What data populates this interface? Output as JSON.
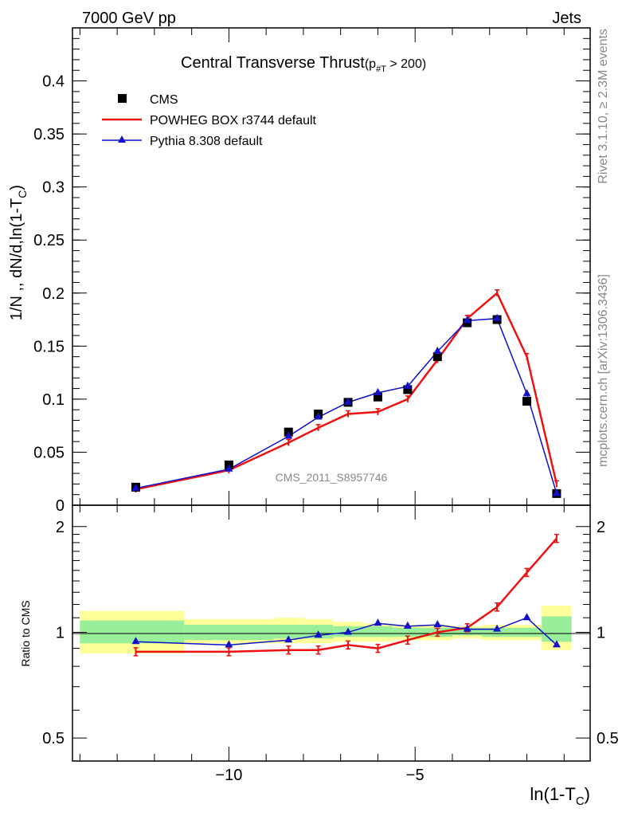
{
  "header": {
    "left": "7000 GeV pp",
    "right": "Jets"
  },
  "side_labels": {
    "top": "Rivet 3.1.10, ≥ 2.3M events",
    "bottom": "mcplots.cern.ch [arXiv:1306.3436]"
  },
  "watermark": "CMS_2011_S8957746",
  "chart_data": [
    {
      "type": "line",
      "title_main": "Central Transverse Thrust",
      "title_sub": "(p",
      "title_sub2": "#T",
      "title_sub3": " > 200)",
      "ylabel": "1/N ,, dN/d,ln(1-T",
      "ylabel_sub": "C",
      "ylabel_end": ")",
      "xlim": [
        -14.2,
        -0.3
      ],
      "ylim": [
        0,
        0.45
      ],
      "yticks": [
        0,
        0.05,
        0.1,
        0.15,
        0.2,
        0.25,
        0.3,
        0.35,
        0.4
      ],
      "ytick_labels": [
        "0",
        "0.05",
        "0.1",
        "0.15",
        "0.2",
        "0.25",
        "0.3",
        "0.35",
        "0.4"
      ],
      "legend_position": "top-left",
      "series": [
        {
          "name": "CMS",
          "color": "#000000",
          "marker": "square",
          "x": [
            -12.5,
            -10.0,
            -8.4,
            -7.6,
            -6.8,
            -6.0,
            -5.2,
            -4.4,
            -3.6,
            -2.8,
            -2.0,
            -1.2
          ],
          "y": [
            0.017,
            0.038,
            0.069,
            0.086,
            0.097,
            0.102,
            0.109,
            0.14,
            0.172,
            0.175,
            0.098,
            0.011
          ]
        },
        {
          "name": "POWHEG BOX r3744 default",
          "color": "#ee1111",
          "marker": "errorbar",
          "x": [
            -12.5,
            -10.0,
            -8.4,
            -7.6,
            -6.8,
            -6.0,
            -5.2,
            -4.4,
            -3.6,
            -2.8,
            -2.0,
            -1.2
          ],
          "y": [
            0.015,
            0.033,
            0.059,
            0.073,
            0.086,
            0.088,
            0.1,
            0.137,
            0.176,
            0.2,
            0.14,
            0.02
          ]
        },
        {
          "name": "Pythia 8.308 default",
          "color": "#1111cc",
          "marker": "triangle",
          "x": [
            -12.5,
            -10.0,
            -8.4,
            -7.6,
            -6.8,
            -6.0,
            -5.2,
            -4.4,
            -3.6,
            -2.8,
            -2.0,
            -1.2
          ],
          "y": [
            0.016,
            0.034,
            0.065,
            0.083,
            0.097,
            0.106,
            0.112,
            0.145,
            0.174,
            0.176,
            0.105,
            0.011
          ]
        }
      ]
    },
    {
      "type": "line",
      "xlabel": "ln(1-T",
      "xlabel_sub": "C",
      "xlabel_end": ")",
      "ylabel": "Ratio to CMS",
      "xlim": [
        -14.2,
        -0.3
      ],
      "ylim": [
        0.43,
        2.3
      ],
      "y_scale": "log",
      "yticks": [
        0.5,
        1,
        2
      ],
      "ytick_labels": [
        "0.5",
        "1",
        "2"
      ],
      "xticks": [
        -10,
        -5
      ],
      "xtick_labels": [
        "−10",
        "−5"
      ],
      "bands": [
        {
          "x0": -14.0,
          "x1": -11.2,
          "inner": [
            0.93,
            1.08
          ],
          "outer": [
            0.87,
            1.15
          ]
        },
        {
          "x0": -11.2,
          "x1": -8.8,
          "inner": [
            0.95,
            1.05
          ],
          "outer": [
            0.93,
            1.09
          ]
        },
        {
          "x0": -8.8,
          "x1": -8.0,
          "inner": [
            0.96,
            1.05
          ],
          "outer": [
            0.93,
            1.1
          ]
        },
        {
          "x0": -8.0,
          "x1": -7.2,
          "inner": [
            0.96,
            1.05
          ],
          "outer": [
            0.93,
            1.09
          ]
        },
        {
          "x0": -7.2,
          "x1": -6.4,
          "inner": [
            0.97,
            1.04
          ],
          "outer": [
            0.94,
            1.07
          ]
        },
        {
          "x0": -6.4,
          "x1": -5.6,
          "inner": [
            0.97,
            1.04
          ],
          "outer": [
            0.94,
            1.06
          ]
        },
        {
          "x0": -5.6,
          "x1": -4.8,
          "inner": [
            0.97,
            1.03
          ],
          "outer": [
            0.95,
            1.05
          ]
        },
        {
          "x0": -4.8,
          "x1": -4.0,
          "inner": [
            0.97,
            1.03
          ],
          "outer": [
            0.95,
            1.05
          ]
        },
        {
          "x0": -4.0,
          "x1": -3.2,
          "inner": [
            0.98,
            1.03
          ],
          "outer": [
            0.96,
            1.04
          ]
        },
        {
          "x0": -3.2,
          "x1": -2.4,
          "inner": [
            0.97,
            1.03
          ],
          "outer": [
            0.95,
            1.05
          ]
        },
        {
          "x0": -2.4,
          "x1": -1.6,
          "inner": [
            0.97,
            1.03
          ],
          "outer": [
            0.95,
            1.05
          ]
        },
        {
          "x0": -1.6,
          "x1": -0.8,
          "inner": [
            0.94,
            1.11
          ],
          "outer": [
            0.89,
            1.19
          ]
        }
      ],
      "series": [
        {
          "name": "POWHEG BOX r3744 default",
          "color": "#ee1111",
          "x": [
            -12.5,
            -10.0,
            -8.4,
            -7.6,
            -6.8,
            -6.0,
            -5.2,
            -4.4,
            -3.6,
            -2.8,
            -2.0,
            -1.2
          ],
          "y": [
            0.88,
            0.88,
            0.89,
            0.89,
            0.92,
            0.9,
            0.95,
            1.0,
            1.03,
            1.18,
            1.48,
            1.85
          ]
        },
        {
          "name": "Pythia 8.308 default",
          "color": "#1111cc",
          "x": [
            -12.5,
            -10.0,
            -8.4,
            -7.6,
            -6.8,
            -6.0,
            -5.2,
            -4.4,
            -3.6,
            -2.8,
            -2.0,
            -1.2
          ],
          "y": [
            0.94,
            0.92,
            0.95,
            0.98,
            1.0,
            1.06,
            1.04,
            1.05,
            1.02,
            1.02,
            1.1,
            0.92
          ]
        }
      ]
    }
  ]
}
